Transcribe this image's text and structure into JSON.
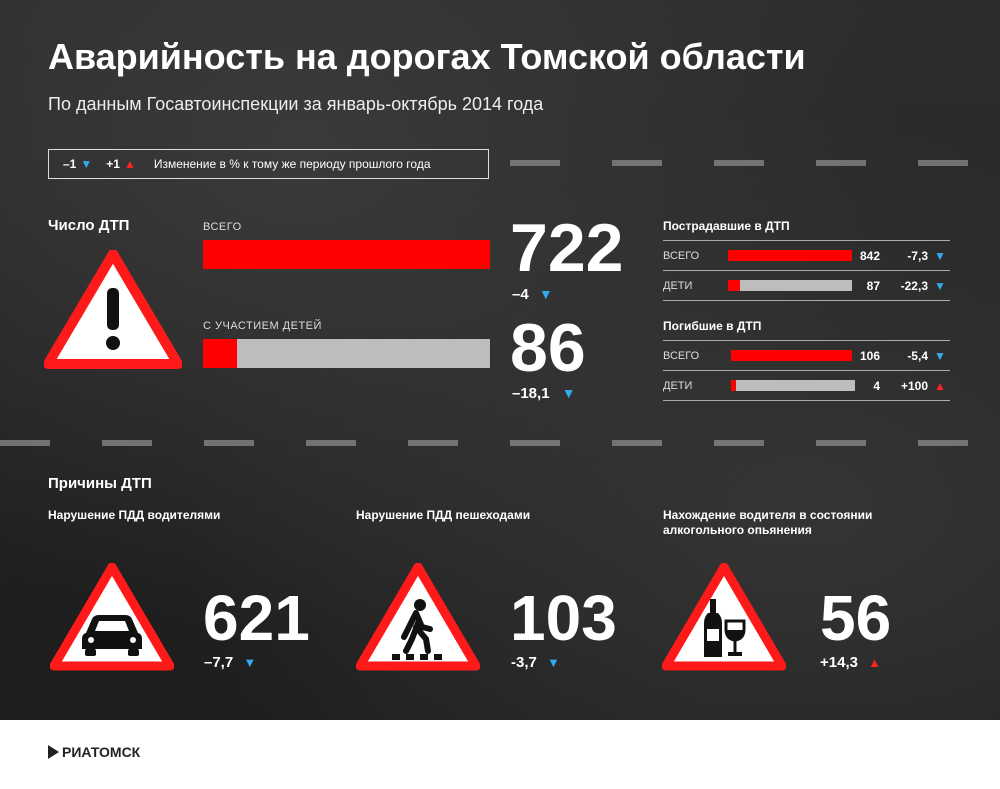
{
  "header": {
    "title": "Аварийность на дорогах Томской области",
    "subtitle": "По данным Госавтоинспекции за январь-октябрь 2014 года"
  },
  "legend": {
    "minus_label": "–1",
    "plus_label": "+1",
    "text": "Изменение в % к тому же периоду прошлого года"
  },
  "accidents": {
    "section_title": "Число ДТП",
    "total": {
      "label": "ВСЕГО",
      "value": "722",
      "change": "–4",
      "direction": "down",
      "fill": 1.0
    },
    "children": {
      "label": "С УЧАСТИЕМ ДЕТЕЙ",
      "value": "86",
      "change": "–18,1",
      "direction": "down",
      "fill": 0.12
    }
  },
  "injured": {
    "title": "Пострадавшие в ДТП",
    "rows": [
      {
        "label": "ВСЕГО",
        "value": "842",
        "change": "-7,3",
        "direction": "down",
        "fill": 1.0
      },
      {
        "label": "ДЕТИ",
        "value": "87",
        "change": "-22,3",
        "direction": "down",
        "fill": 0.1
      }
    ]
  },
  "killed": {
    "title": "Погибшие в ДТП",
    "rows": [
      {
        "label": "ВСЕГО",
        "value": "106",
        "change": "-5,4",
        "direction": "down",
        "fill": 1.0
      },
      {
        "label": "ДЕТИ",
        "value": "4",
        "change": "+100",
        "direction": "up",
        "fill": 0.04
      }
    ]
  },
  "causes": {
    "section_title": "Причины ДТП",
    "items": [
      {
        "title": "Нарушение ПДД водителями",
        "value": "621",
        "change": "–7,7",
        "direction": "down",
        "icon": "car-icon"
      },
      {
        "title": "Нарушение ПДД пешеходами",
        "value": "103",
        "change": "-3,7",
        "direction": "down",
        "icon": "pedestrian-icon"
      },
      {
        "title": "Нахождение водителя в состоянии алкогольного опьянения",
        "value": "56",
        "change": "+14,3",
        "direction": "up",
        "icon": "alcohol-icon"
      }
    ]
  },
  "footer": {
    "logo_text": "РИАТОМСК"
  },
  "colors": {
    "red": "#ff0000",
    "blue_arrow": "#33aaee",
    "gray_bar": "#bdbdbd",
    "background": "#2b2b2b"
  }
}
